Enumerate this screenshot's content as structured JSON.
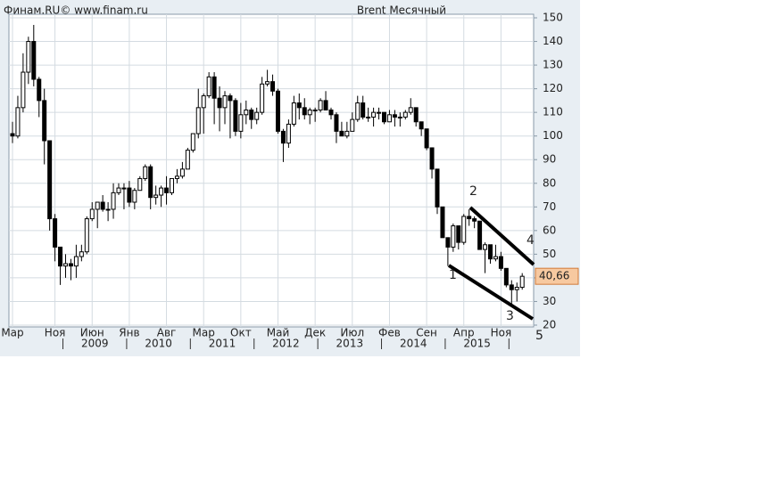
{
  "chart_data": {
    "type": "candlestick",
    "header_left": "Финам.RU©  www.finam.ru",
    "title": "Brent Месячный",
    "categories": [
      "Мар",
      null,
      null,
      null,
      null,
      null,
      null,
      null,
      "Ноя",
      null,
      null,
      null,
      null,
      null,
      null,
      "Июн",
      null,
      null,
      null,
      null,
      null,
      null,
      "Янв",
      null,
      null,
      null,
      null,
      null,
      null,
      "Авг",
      null,
      null,
      null,
      null,
      null,
      null,
      "Мар",
      null,
      null,
      null,
      null,
      null,
      null,
      "Окт",
      null,
      null,
      null,
      null,
      null,
      null,
      "Май",
      null,
      null,
      null,
      null,
      null,
      null,
      "Дек",
      null,
      null,
      null,
      null,
      null,
      null,
      "Июл",
      null,
      null,
      null,
      null,
      null,
      null,
      "Фев",
      null,
      null,
      null,
      null,
      null,
      null,
      "Сен",
      null,
      null,
      null,
      null,
      null,
      null,
      "Апр",
      null,
      null,
      null,
      null,
      null,
      null,
      "Ноя",
      null,
      null,
      null,
      null
    ],
    "years": [
      "2009",
      "2010",
      "2011",
      "2012",
      "2013",
      "2014",
      "2015"
    ],
    "open": [
      101,
      100,
      112,
      127,
      140,
      124,
      115,
      98,
      65,
      53,
      45,
      46,
      45,
      49,
      51,
      65,
      69,
      72,
      69,
      69,
      76,
      78,
      78,
      72,
      77,
      82,
      87,
      74,
      75,
      78,
      76,
      82,
      83,
      86,
      94,
      101,
      112,
      117,
      125,
      116,
      112,
      117,
      115,
      102,
      109,
      111,
      107,
      110,
      122,
      123,
      119,
      102,
      97,
      105,
      114,
      112,
      109,
      111,
      111,
      115,
      111,
      109,
      102,
      100,
      102,
      107,
      114,
      108,
      108,
      110,
      110,
      106,
      109,
      108,
      108,
      110,
      112,
      106,
      103,
      95,
      86,
      70,
      57,
      53,
      62,
      55,
      66,
      65,
      64,
      52,
      54,
      48,
      49,
      44,
      37,
      35,
      36
    ],
    "high": [
      106,
      117,
      135,
      142,
      147,
      125,
      120,
      98,
      67,
      53,
      50,
      48,
      54,
      54,
      66,
      72,
      72,
      75,
      72,
      80,
      80,
      80,
      81,
      78,
      83,
      88,
      88,
      79,
      79,
      83,
      82,
      86,
      89,
      95,
      101,
      120,
      118,
      127,
      127,
      121,
      119,
      118,
      116,
      114,
      115,
      112,
      112,
      125,
      128,
      126,
      120,
      103,
      107,
      117,
      118,
      116,
      112,
      112,
      116,
      119,
      112,
      110,
      106,
      106,
      110,
      117,
      117,
      112,
      112,
      112,
      110,
      111,
      111,
      110,
      111,
      116,
      112,
      106,
      103,
      95,
      86,
      70,
      57,
      63,
      62,
      67,
      69,
      66,
      64,
      55,
      54,
      54,
      51,
      44,
      39,
      38,
      42
    ],
    "low": [
      97,
      99,
      110,
      122,
      121,
      108,
      88,
      60,
      47,
      37,
      40,
      39,
      40,
      47,
      50,
      64,
      61,
      68,
      64,
      65,
      75,
      69,
      70,
      69,
      77,
      81,
      69,
      71,
      70,
      71,
      75,
      80,
      82,
      86,
      93,
      99,
      101,
      116,
      105,
      102,
      105,
      99,
      100,
      99,
      105,
      103,
      105,
      109,
      121,
      117,
      101,
      89,
      95,
      104,
      107,
      107,
      105,
      106,
      110,
      111,
      107,
      97,
      100,
      99,
      102,
      106,
      107,
      106,
      104,
      107,
      105,
      106,
      104,
      104,
      107,
      109,
      104,
      100,
      94,
      82,
      67,
      57,
      45,
      51,
      52,
      54,
      62,
      61,
      52,
      42,
      46,
      47,
      43,
      36,
      28,
      30,
      35
    ],
    "close": [
      100,
      112,
      127,
      140,
      124,
      115,
      98,
      65,
      53,
      45,
      46,
      45,
      49,
      51,
      65,
      69,
      72,
      69,
      69,
      76,
      78,
      78,
      72,
      77,
      82,
      87,
      74,
      75,
      78,
      76,
      82,
      83,
      86,
      94,
      101,
      112,
      117,
      125,
      116,
      112,
      117,
      115,
      102,
      109,
      111,
      107,
      110,
      122,
      123,
      119,
      102,
      97,
      105,
      114,
      112,
      109,
      111,
      111,
      115,
      111,
      109,
      102,
      100,
      102,
      107,
      114,
      108,
      108,
      110,
      110,
      106,
      109,
      108,
      108,
      110,
      112,
      106,
      103,
      95,
      86,
      70,
      57,
      53,
      62,
      55,
      66,
      65,
      64,
      52,
      54,
      48,
      49,
      44,
      37,
      35,
      36,
      40.66
    ],
    "current_price": {
      "value": 40.66,
      "label": "40,66"
    },
    "ylim": [
      20,
      150
    ],
    "yticks": [
      20,
      30,
      40,
      50,
      60,
      70,
      80,
      90,
      100,
      110,
      120,
      130,
      140,
      150
    ],
    "grid": true,
    "annotations": [
      "1",
      "2",
      "3",
      "4",
      "5"
    ]
  }
}
